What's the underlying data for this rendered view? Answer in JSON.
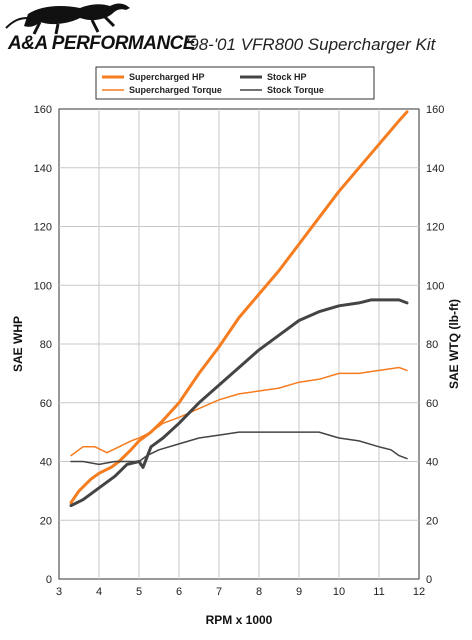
{
  "header": {
    "brand": "A&A PERFORMANCE",
    "title": "'98-'01 VFR800 Supercharger Kit"
  },
  "chart_data": {
    "type": "line",
    "xlabel": "RPM x 1000",
    "ylabel_left": "SAE WHP",
    "ylabel_right": "SAE WTQ (lb-ft)",
    "xlim": [
      3,
      12
    ],
    "ylim": [
      0,
      160
    ],
    "x_ticks": [
      3,
      4,
      5,
      6,
      7,
      8,
      9,
      10,
      11,
      12
    ],
    "y_ticks": [
      0,
      20,
      40,
      60,
      80,
      100,
      120,
      140,
      160
    ],
    "grid": true,
    "legend_position": "top",
    "series": [
      {
        "name": "Supercharged HP",
        "color": "#f57c1f",
        "width": 3,
        "x": [
          3.3,
          3.5,
          3.8,
          4.0,
          4.3,
          4.5,
          4.8,
          5.0,
          5.3,
          5.6,
          6.0,
          6.5,
          7.0,
          7.5,
          8.0,
          8.5,
          9.0,
          9.5,
          10.0,
          10.5,
          11.0,
          11.5,
          11.7
        ],
        "values": [
          26,
          30,
          34,
          36,
          38,
          40,
          44,
          47,
          50,
          54,
          60,
          70,
          79,
          89,
          97,
          105,
          114,
          123,
          132,
          140,
          148,
          156,
          159
        ]
      },
      {
        "name": "Supercharged Torque",
        "color": "#f57c1f",
        "width": 1.5,
        "x": [
          3.3,
          3.6,
          3.9,
          4.2,
          4.5,
          4.8,
          5.0,
          5.3,
          5.6,
          6.0,
          6.5,
          7.0,
          7.5,
          8.0,
          8.5,
          9.0,
          9.5,
          10.0,
          10.5,
          11.0,
          11.5,
          11.7
        ],
        "values": [
          42,
          45,
          45,
          43,
          45,
          47,
          48,
          50,
          53,
          55,
          58,
          61,
          63,
          64,
          65,
          67,
          68,
          70,
          70,
          71,
          72,
          71
        ]
      },
      {
        "name": "Stock HP",
        "color": "#444444",
        "width": 3,
        "x": [
          3.3,
          3.6,
          4.0,
          4.4,
          4.7,
          5.0,
          5.1,
          5.3,
          5.6,
          6.0,
          6.5,
          7.0,
          7.5,
          8.0,
          8.5,
          9.0,
          9.5,
          10.0,
          10.5,
          10.8,
          11.0,
          11.5,
          11.7
        ],
        "values": [
          25,
          27,
          31,
          35,
          39,
          40,
          38,
          45,
          48,
          53,
          60,
          66,
          72,
          78,
          83,
          88,
          91,
          93,
          94,
          95,
          95,
          95,
          94
        ]
      },
      {
        "name": "Stock Torque",
        "color": "#444444",
        "width": 1.5,
        "x": [
          3.3,
          3.6,
          4.0,
          4.4,
          4.8,
          5.0,
          5.2,
          5.5,
          6.0,
          6.5,
          7.0,
          7.5,
          8.0,
          8.5,
          9.0,
          9.5,
          10.0,
          10.5,
          11.0,
          11.3,
          11.5,
          11.7
        ],
        "values": [
          40,
          40,
          39,
          40,
          40,
          40,
          42,
          44,
          46,
          48,
          49,
          50,
          50,
          50,
          50,
          50,
          48,
          47,
          45,
          44,
          42,
          41
        ]
      }
    ]
  }
}
